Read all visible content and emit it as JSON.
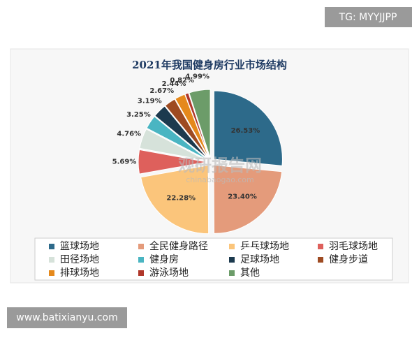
{
  "tag": "TG: MYYJJPP",
  "site": "www.batixianyu.com",
  "chart_data": {
    "type": "pie",
    "title": "2021年我国健身房行业市场结构",
    "watermark": [
      "观研报告网",
      "chinabaogao.com"
    ],
    "categories": [
      "篮球场地",
      "全民健身路径",
      "乒乓球场地",
      "羽毛球场地",
      "田径场地",
      "健身房",
      "足球场地",
      "健身步道",
      "排球场地",
      "游泳场地",
      "其他"
    ],
    "values": [
      26.53,
      23.4,
      22.28,
      5.69,
      4.76,
      3.25,
      3.19,
      2.67,
      2.44,
      0.82,
      4.99
    ],
    "value_labels": [
      "26.53%",
      "23.40%",
      "22.28%",
      "5.69%",
      "4.76%",
      "3.25%",
      "3.19%",
      "2.67%",
      "2.44%",
      "0.82%",
      "4.99%"
    ],
    "colors": [
      "#2d6a8a",
      "#e49b7b",
      "#fbc57b",
      "#de605c",
      "#d6e2da",
      "#4ab5c2",
      "#1c3a4e",
      "#9e4b22",
      "#e5891c",
      "#b0372a",
      "#6c9c69"
    ],
    "legend": "bottom"
  }
}
